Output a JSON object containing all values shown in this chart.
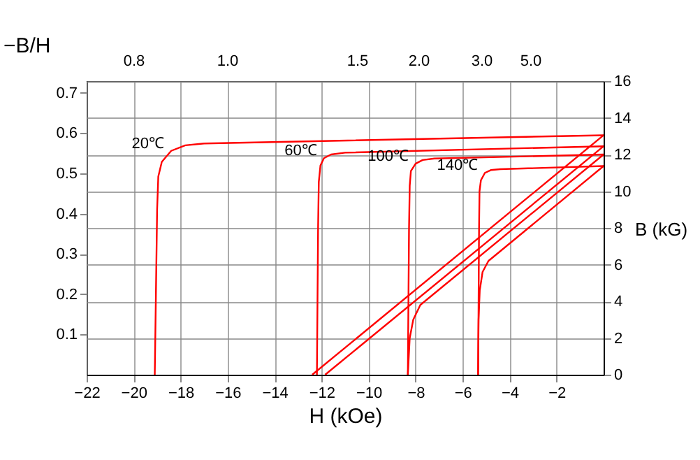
{
  "chart_data": {
    "type": "line",
    "xlabel": "H (kOe)",
    "ylabel": "B (kG)",
    "y2label": "−B/H",
    "xlim": [
      -22,
      0
    ],
    "xticks": [
      -22,
      -20,
      -18,
      -16,
      -14,
      -12,
      -10,
      -8,
      -6,
      -4,
      -2
    ],
    "ylim": [
      0,
      16
    ],
    "yticks": [
      0,
      2,
      4,
      6,
      8,
      10,
      12,
      14,
      16
    ],
    "y2lim": [
      0,
      0.729
    ],
    "y2ticks": [
      0.1,
      0.2,
      0.3,
      0.4,
      0.5,
      0.6,
      0.7
    ],
    "grid": true,
    "line_style": "solid",
    "series": [
      {
        "color": "#ff0000",
        "x": [
          0,
          -17.0,
          -17.8,
          -18.4,
          -18.8,
          -18.95,
          -19.0,
          -19.1
        ],
        "values": [
          13.05,
          12.6,
          12.5,
          12.2,
          11.6,
          10.8,
          9,
          0
        ]
      },
      {
        "color": "#ff0000",
        "x": [
          0,
          -11.0,
          -11.6,
          -11.9,
          -12.05,
          -12.12,
          -12.15,
          -12.2
        ],
        "values": [
          12.45,
          12.1,
          12.0,
          11.8,
          11.4,
          10.5,
          8,
          0
        ]
      },
      {
        "color": "#ff0000",
        "x": [
          0,
          -7.2,
          -7.7,
          -8.0,
          -8.2,
          -8.25,
          -8.28,
          -8.33
        ],
        "values": [
          12.0,
          11.78,
          11.7,
          11.5,
          11.1,
          10.3,
          8,
          0
        ]
      },
      {
        "color": "#ff0000",
        "x": [
          0,
          -4.4,
          -4.8,
          -5.05,
          -5.22,
          -5.28,
          -5.3,
          -5.34
        ],
        "values": [
          11.37,
          11.2,
          11.15,
          11.0,
          10.6,
          10.0,
          8,
          0
        ]
      },
      {
        "color": "#ff0000",
        "x": [
          0,
          -12.4
        ],
        "values": [
          13.05,
          0
        ]
      },
      {
        "color": "#ff0000",
        "x": [
          0,
          -11.85
        ],
        "values": [
          12.45,
          0
        ]
      },
      {
        "color": "#ff0000",
        "x": [
          0,
          -7.8,
          -8.1,
          -8.25,
          -8.33
        ],
        "values": [
          12.0,
          3.8,
          3.0,
          2.0,
          0
        ]
      },
      {
        "color": "#ff0000",
        "x": [
          0,
          -4.9,
          -5.15,
          -5.27,
          -5.32,
          -5.34
        ],
        "values": [
          11.37,
          6.2,
          5.6,
          4.6,
          3,
          0
        ]
      }
    ],
    "annotations": [
      {
        "text": "20℃",
        "x": -18.4,
        "y": 12.2
      },
      {
        "text": "60℃",
        "x": -11.9,
        "y": 11.8
      },
      {
        "text": "100℃",
        "x": -8.0,
        "y": 11.5
      },
      {
        "text": "140℃",
        "x": -5.05,
        "y": 11.0
      },
      "0.8",
      "1.0",
      "1.5",
      "2.0",
      "3.0",
      "5.0"
    ]
  }
}
